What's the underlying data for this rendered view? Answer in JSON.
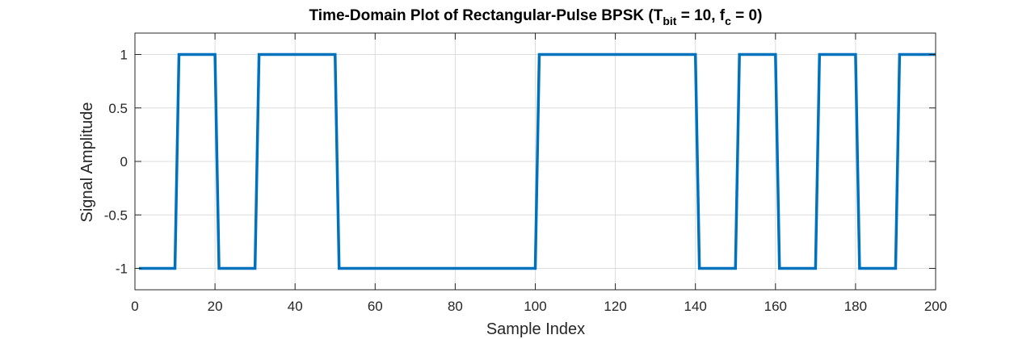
{
  "chart_data": {
    "type": "line",
    "title_main": "Time-Domain Plot of Rectangular-Pulse BPSK (T",
    "title_sub1": "bit",
    "title_mid": " = 10, f",
    "title_sub2": "c",
    "title_end": " = 0)",
    "xlabel": "Sample Index",
    "ylabel": "Signal Amplitude",
    "xlim": [
      0,
      200
    ],
    "ylim": [
      -1.2,
      1.2
    ],
    "grid": true,
    "x_ticks": [
      0,
      20,
      40,
      60,
      80,
      100,
      120,
      140,
      160,
      180,
      200
    ],
    "y_ticks": [
      -1,
      -0.5,
      0,
      0.5,
      1
    ],
    "series_color": "#0072BD",
    "series": [
      {
        "x": [
          1,
          10,
          11,
          20,
          21,
          30,
          31,
          50,
          51,
          100,
          101,
          140,
          141,
          150,
          151,
          160,
          161,
          170,
          171,
          180,
          181,
          190,
          191,
          200
        ],
        "y": [
          -1,
          -1,
          1,
          1,
          -1,
          -1,
          1,
          1,
          -1,
          -1,
          1,
          1,
          -1,
          -1,
          1,
          1,
          -1,
          -1,
          1,
          1,
          -1,
          -1,
          1,
          1
        ]
      }
    ]
  }
}
